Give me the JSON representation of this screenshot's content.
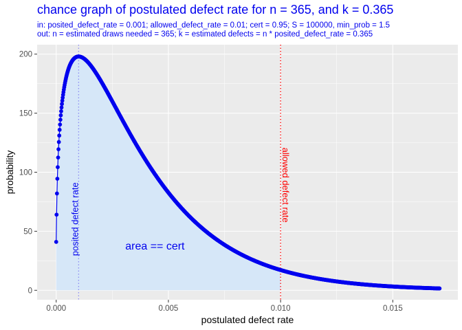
{
  "chart_data": {
    "type": "scatter",
    "title": "chance graph of postulated defect rate for n = 365, and k = 0.365",
    "subtitle_lines": [
      "in:   posited_defect_rate = 0.001; allowed_defect_rate = 0.01; cert = 0.95; S = 100000, min_prob = 1.5",
      "out: n = estimated draws needed = 365; k = estimated defects = n * posited_defect_rate = 0.365"
    ],
    "xlabel": "postulated defect rate",
    "ylabel": "probability",
    "xlim": [
      -0.00085,
      0.0179
    ],
    "ylim": [
      -8,
      208
    ],
    "x_ticks": [
      0.0,
      0.005,
      0.01,
      0.015
    ],
    "x_tick_labels": [
      "0.000",
      "0.005",
      "0.010",
      "0.015"
    ],
    "y_ticks": [
      0,
      50,
      100,
      150,
      200
    ],
    "y_tick_labels": [
      "0",
      "50",
      "100",
      "150",
      "200"
    ],
    "grid": true,
    "series": [
      {
        "curve": "density of postulated defect rate p: (n*p)^k * exp(-n*p), scaled",
        "n": 365,
        "k": 0.365,
        "peak_y": 198,
        "x_start": 0.0,
        "x_end": 0.0171,
        "x_step": 1.7e-05,
        "first_points": [
          {
            "x": 0.0,
            "y": 41
          },
          {
            "x": 1.7e-05,
            "y": 61
          },
          {
            "x": 3.4e-05,
            "y": 72
          },
          {
            "x": 5.1e-05,
            "y": 82
          },
          {
            "x": 6.8e-05,
            "y": 90
          },
          {
            "x": 8.5e-05,
            "y": 98
          },
          {
            "x": 0.000102,
            "y": 104
          }
        ],
        "sample_points": [
          {
            "x": 0.001,
            "y": 198
          },
          {
            "x": 0.002,
            "y": 176
          },
          {
            "x": 0.003,
            "y": 141
          },
          {
            "x": 0.004,
            "y": 107
          },
          {
            "x": 0.005,
            "y": 79
          },
          {
            "x": 0.006,
            "y": 57
          },
          {
            "x": 0.007,
            "y": 42
          },
          {
            "x": 0.008,
            "y": 30
          },
          {
            "x": 0.009,
            "y": 22
          },
          {
            "x": 0.01,
            "y": 17
          },
          {
            "x": 0.012,
            "y": 9
          },
          {
            "x": 0.014,
            "y": 5
          },
          {
            "x": 0.017,
            "y": 2
          }
        ],
        "color": "#0000ee"
      }
    ],
    "shaded_area": {
      "x_from": 0.0,
      "x_to": 0.01,
      "color": "#d6e7f8"
    },
    "vlines": [
      {
        "x": 0.001,
        "label": "posited defect rate",
        "color": "#0000ee"
      },
      {
        "x": 0.01,
        "label": "allowed defect rate",
        "color": "#ff0000"
      }
    ],
    "annotations": [
      {
        "text": "area == cert",
        "x": 0.0044,
        "y": 38
      }
    ],
    "colors": {
      "panel_bg": "#ebebeb",
      "grid_major": "#ffffff",
      "point_color": "#0000ee",
      "area_fill": "#d6e7f8",
      "posited_line": "#8c8cf2",
      "allowed_line": "#ff0000"
    }
  }
}
